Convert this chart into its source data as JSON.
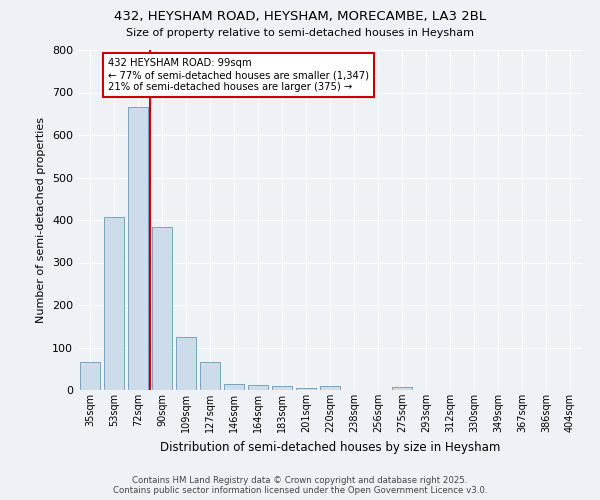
{
  "title1": "432, HEYSHAM ROAD, HEYSHAM, MORECAMBE, LA3 2BL",
  "title2": "Size of property relative to semi-detached houses in Heysham",
  "xlabel": "Distribution of semi-detached houses by size in Heysham",
  "ylabel": "Number of semi-detached properties",
  "bar_color": "#ccdce8",
  "bar_edge_color": "#6699bb",
  "categories": [
    "35sqm",
    "53sqm",
    "72sqm",
    "90sqm",
    "109sqm",
    "127sqm",
    "146sqm",
    "164sqm",
    "183sqm",
    "201sqm",
    "220sqm",
    "238sqm",
    "256sqm",
    "275sqm",
    "293sqm",
    "312sqm",
    "330sqm",
    "349sqm",
    "367sqm",
    "386sqm",
    "404sqm"
  ],
  "values": [
    65,
    408,
    665,
    383,
    125,
    65,
    15,
    12,
    9,
    5,
    10,
    0,
    0,
    6,
    0,
    0,
    0,
    0,
    0,
    0,
    0
  ],
  "property_line_bin": 3,
  "property_label": "432 HEYSHAM ROAD: 99sqm",
  "annotation_line1": "← 77% of semi-detached houses are smaller (1,347)",
  "annotation_line2": "21% of semi-detached houses are larger (375) →",
  "ylim": [
    0,
    800
  ],
  "yticks": [
    0,
    100,
    200,
    300,
    400,
    500,
    600,
    700,
    800
  ],
  "annotation_box_color": "#cc0000",
  "footer1": "Contains HM Land Registry data © Crown copyright and database right 2025.",
  "footer2": "Contains public sector information licensed under the Open Government Licence v3.0.",
  "background_color": "#eef2f7",
  "grid_color": "#ffffff"
}
